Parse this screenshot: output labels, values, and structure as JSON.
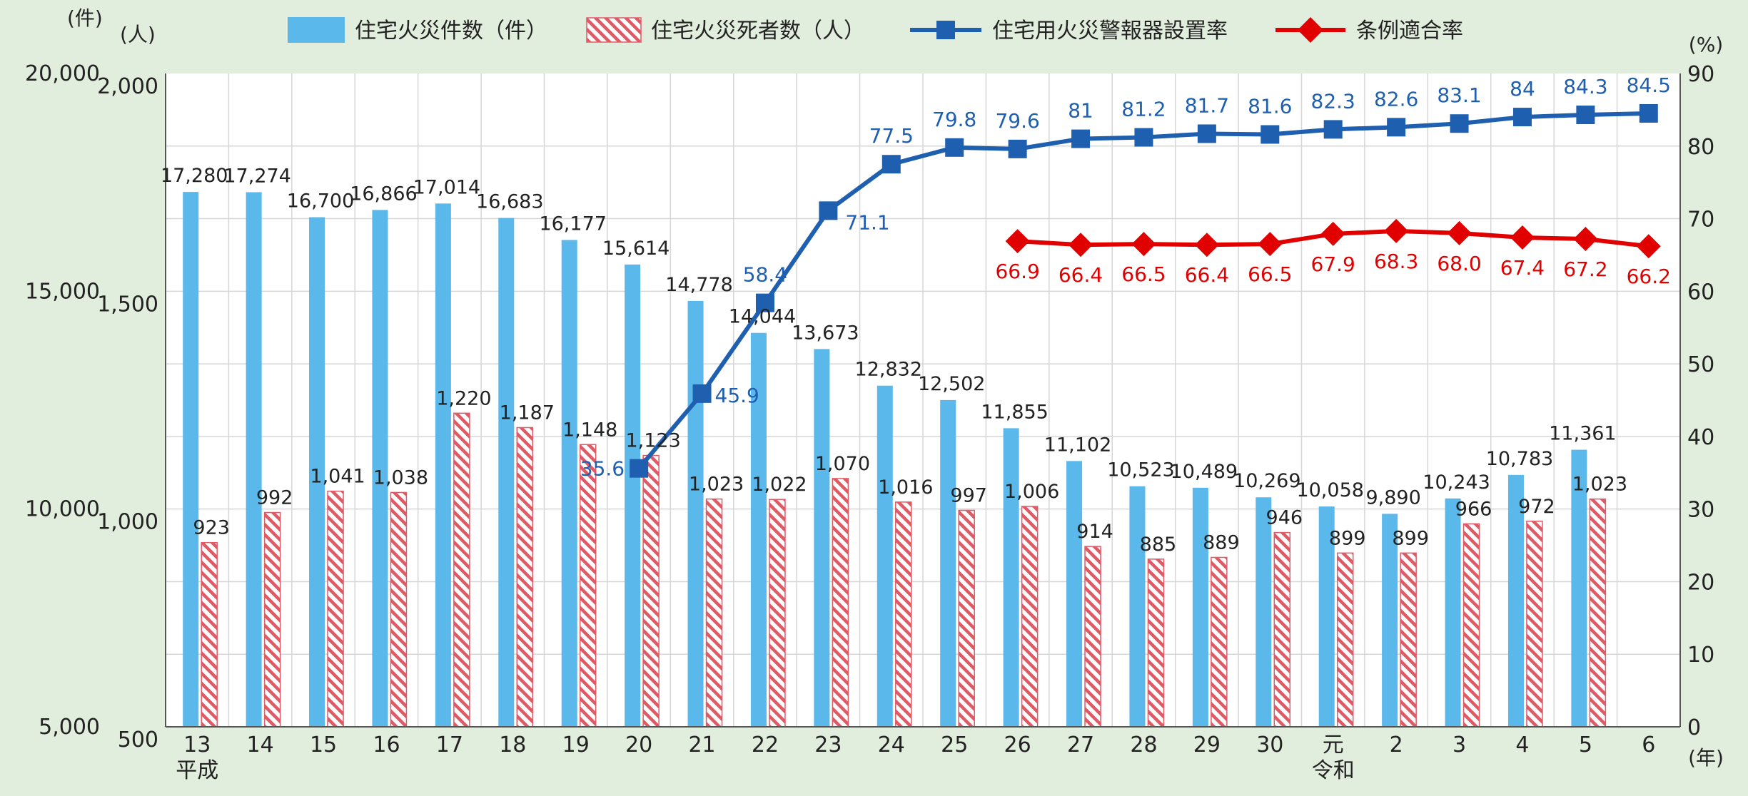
{
  "chart_data": {
    "type": "bar",
    "categories": [
      "13",
      "14",
      "15",
      "16",
      "17",
      "18",
      "19",
      "20",
      "21",
      "22",
      "23",
      "24",
      "25",
      "26",
      "27",
      "28",
      "29",
      "30",
      "元",
      "2",
      "3",
      "4",
      "5",
      "6"
    ],
    "era_labels": [
      {
        "index": 0,
        "text": "平成"
      },
      {
        "index": 18,
        "text": "令和"
      }
    ],
    "x_unit": "(年)",
    "y_left_outer": {
      "unit": "(件)",
      "ticks": [
        "5,000",
        "10,000",
        "15,000",
        "20,000"
      ],
      "range": [
        5000,
        20000
      ]
    },
    "y_left_inner": {
      "unit": "(人)",
      "ticks": [
        "500",
        "1,000",
        "1,500",
        "2,000"
      ],
      "range": [
        500,
        2000
      ]
    },
    "y_right": {
      "unit": "(%)",
      "ticks": [
        "0",
        "10",
        "20",
        "30",
        "40",
        "50",
        "60",
        "70",
        "80",
        "90"
      ],
      "range": [
        0,
        90
      ]
    },
    "series": [
      {
        "name": "住宅火災件数（件）",
        "type": "bar",
        "axis": "left_outer",
        "color": "#5bb8ea",
        "values": [
          17280,
          17274,
          16700,
          16866,
          17014,
          16683,
          16177,
          15614,
          14778,
          14044,
          13673,
          12832,
          12502,
          11855,
          11102,
          10523,
          10489,
          10269,
          10058,
          9890,
          10243,
          10783,
          11361,
          null
        ],
        "labels": [
          "17,280",
          "17,274",
          "16,700",
          "16,866",
          "17,014",
          "16,683",
          "16,177",
          "15,614",
          "14,778",
          "14,044",
          "13,673",
          "12,832",
          "12,502",
          "11,855",
          "11,102",
          "10,523",
          "10,489",
          "10,269",
          "10,058",
          "9,890",
          "10,243",
          "10,783",
          "11,361",
          ""
        ]
      },
      {
        "name": "住宅火災死者数（人）",
        "type": "bar",
        "axis": "left_inner",
        "color": "#e05a66",
        "values": [
          923,
          992,
          1041,
          1038,
          1220,
          1187,
          1148,
          1123,
          1023,
          1022,
          1070,
          1016,
          997,
          1006,
          914,
          885,
          889,
          946,
          899,
          899,
          966,
          972,
          1023,
          null
        ],
        "labels": [
          "923",
          "992",
          "1,041",
          "1,038",
          "1,220",
          "1,187",
          "1,148",
          "1,123",
          "1,023",
          "1,022",
          "1,070",
          "1,016",
          "997",
          "1,006",
          "914",
          "885",
          "889",
          "946",
          "899",
          "899",
          "966",
          "972",
          "1,023",
          ""
        ]
      },
      {
        "name": "住宅用火災警報器設置率",
        "type": "line",
        "axis": "right",
        "color": "#1f5fb0",
        "values": [
          null,
          null,
          null,
          null,
          null,
          null,
          null,
          35.6,
          45.9,
          58.4,
          71.1,
          77.5,
          79.8,
          79.6,
          81,
          81.2,
          81.7,
          81.6,
          82.3,
          82.6,
          83.1,
          84,
          84.3,
          84.5
        ],
        "labels": [
          "",
          "",
          "",
          "",
          "",
          "",
          "",
          "35.6",
          "45.9",
          "58.4",
          "71.1",
          "77.5",
          "79.8",
          "79.6",
          "81",
          "81.2",
          "81.7",
          "81.6",
          "82.3",
          "82.6",
          "83.1",
          "84",
          "84.3",
          "84.5"
        ]
      },
      {
        "name": "条例適合率",
        "type": "line",
        "axis": "right",
        "color": "#e00000",
        "values": [
          null,
          null,
          null,
          null,
          null,
          null,
          null,
          null,
          null,
          null,
          null,
          null,
          null,
          66.9,
          66.4,
          66.5,
          66.4,
          66.5,
          67.9,
          68.3,
          68.0,
          67.4,
          67.2,
          66.2
        ],
        "labels": [
          "",
          "",
          "",
          "",
          "",
          "",
          "",
          "",
          "",
          "",
          "",
          "",
          "",
          "66.9",
          "66.4",
          "66.5",
          "66.4",
          "66.5",
          "67.9",
          "68.3",
          "68.0",
          "67.4",
          "67.2",
          "66.2"
        ]
      }
    ],
    "legend_position": "top"
  }
}
